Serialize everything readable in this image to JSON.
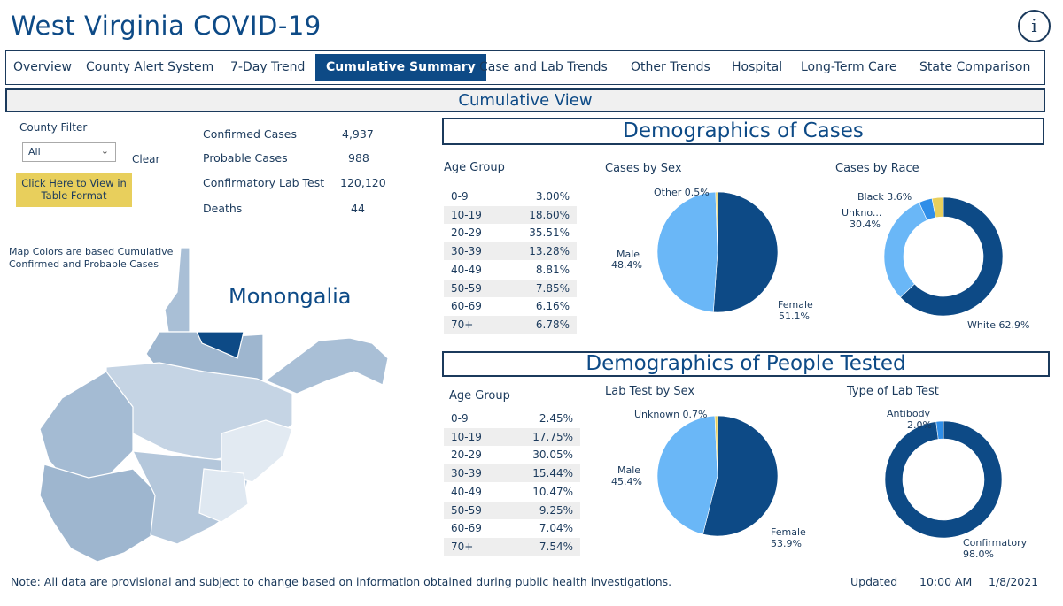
{
  "app": {
    "title": "West Virginia COVID-19",
    "info_icon": "i"
  },
  "nav": {
    "tabs": [
      "Overview",
      "County Alert System",
      "7-Day Trend",
      "Cumulative Summary",
      "Case and Lab Trends",
      "Other Trends",
      "Hospital",
      "Long-Term Care",
      "State Comparison"
    ],
    "active": "Cumulative Summary"
  },
  "section": {
    "cumulative_view": "Cumulative View"
  },
  "filter": {
    "label": "County Filter",
    "value": "All",
    "clear": "Clear",
    "table_button": "Click Here to View in Table Format"
  },
  "stats": [
    {
      "label": "Confirmed Cases",
      "value": "4,937"
    },
    {
      "label": "Probable Cases",
      "value": "988"
    },
    {
      "label": "Confirmatory Lab Test",
      "value": "120,120"
    },
    {
      "label": "Deaths",
      "value": "44"
    }
  ],
  "map": {
    "note": "Map Colors are based Cumulative Confirmed and Probable Cases",
    "county": "Monongalia"
  },
  "cases": {
    "heading": "Demographics of Cases",
    "age_title": "Age Group",
    "ages": [
      [
        "0-9",
        "3.00%"
      ],
      [
        "10-19",
        "18.60%"
      ],
      [
        "20-29",
        "35.51%"
      ],
      [
        "30-39",
        "13.28%"
      ],
      [
        "40-49",
        "8.81%"
      ],
      [
        "50-59",
        "7.85%"
      ],
      [
        "60-69",
        "6.16%"
      ],
      [
        "70+",
        "6.78%"
      ]
    ],
    "sex_title": "Cases by Sex",
    "sex": {
      "other": "Other 0.5%",
      "male": "Male",
      "male_pct": "48.4%",
      "female": "Female",
      "female_pct": "51.1%"
    },
    "race_title": "Cases by Race",
    "race": {
      "black": "Black 3.6%",
      "unknown": "Unkno...",
      "unknown_pct": "30.4%",
      "white": "White 62.9%"
    }
  },
  "tested": {
    "heading": "Demographics of People Tested",
    "age_title": "Age Group",
    "ages": [
      [
        "0-9",
        "2.45%"
      ],
      [
        "10-19",
        "17.75%"
      ],
      [
        "20-29",
        "30.05%"
      ],
      [
        "30-39",
        "15.44%"
      ],
      [
        "40-49",
        "10.47%"
      ],
      [
        "50-59",
        "9.25%"
      ],
      [
        "60-69",
        "7.04%"
      ],
      [
        "70+",
        "7.54%"
      ]
    ],
    "sex_title": "Lab Test by Sex",
    "sex": {
      "unknown": "Unknown 0.7%",
      "male": "Male",
      "male_pct": "45.4%",
      "female": "Female",
      "female_pct": "53.9%"
    },
    "type_title": "Type of Lab Test",
    "type": {
      "antibody": "Antibody",
      "antibody_pct": "2.0%",
      "confirmatory": "Confirmatory",
      "confirmatory_pct": "98.0%"
    }
  },
  "chart_data": [
    {
      "type": "pie",
      "title": "Cases by Sex",
      "categories": [
        "Female",
        "Male",
        "Other"
      ],
      "values": [
        51.1,
        48.4,
        0.5
      ]
    },
    {
      "type": "pie",
      "title": "Cases by Race",
      "donut": true,
      "categories": [
        "White",
        "Unknown",
        "Black",
        "Other"
      ],
      "values": [
        62.9,
        30.4,
        3.6,
        3.1
      ]
    },
    {
      "type": "pie",
      "title": "Lab Test by Sex",
      "categories": [
        "Female",
        "Male",
        "Unknown"
      ],
      "values": [
        53.9,
        45.4,
        0.7
      ]
    },
    {
      "type": "pie",
      "title": "Type of Lab Test",
      "donut": true,
      "categories": [
        "Confirmatory",
        "Antibody"
      ],
      "values": [
        98.0,
        2.0
      ]
    }
  ],
  "colors": {
    "dark": "#0d4a86",
    "light": "#6ab7f7",
    "mid": "#2f8ee8",
    "yellow": "#e8cf5c",
    "map_base": "#a9bfd6"
  },
  "footer": {
    "note": "Note: All data are provisional and subject to change based on information obtained during public health investigations.",
    "updated_label": "Updated",
    "time": "10:00 AM",
    "date": "1/8/2021"
  }
}
